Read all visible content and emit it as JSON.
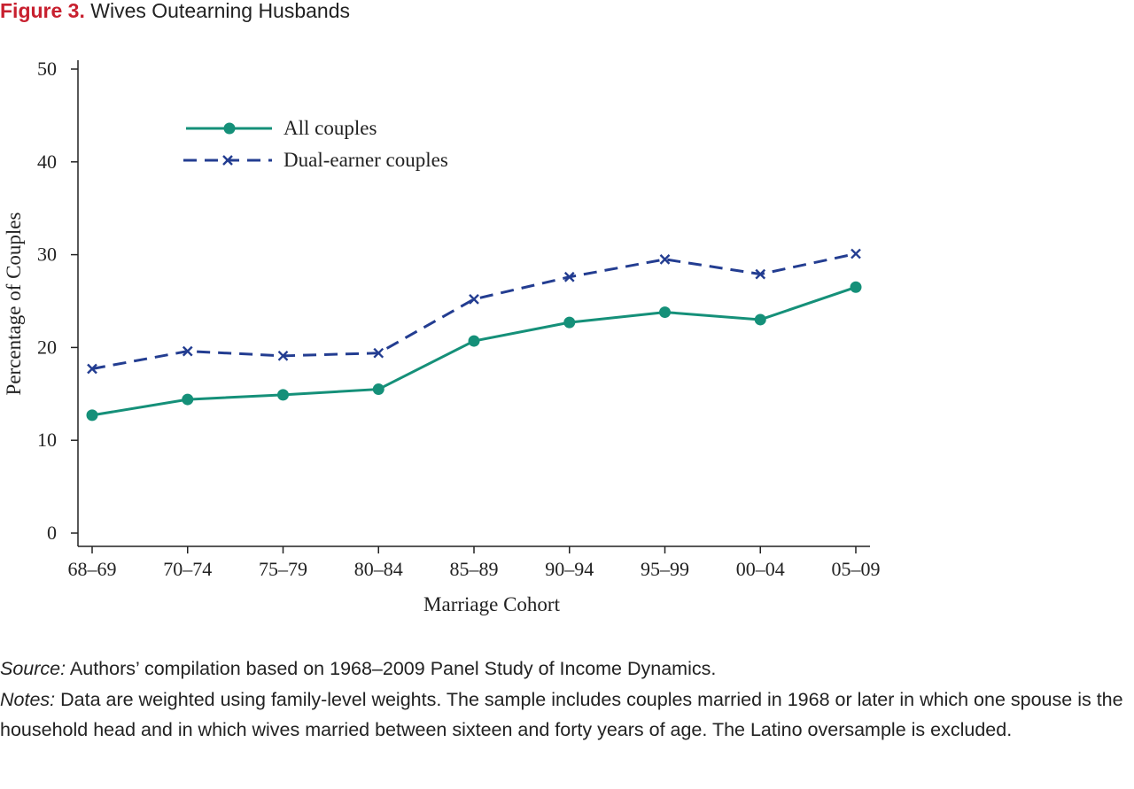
{
  "figure": {
    "number": "Figure 3.",
    "title": "Wives Outearning Husbands"
  },
  "colors": {
    "all_couples": "#159079",
    "dual_earner": "#233d91",
    "figure_number": "#c8202f"
  },
  "chart_data": {
    "type": "line",
    "categories": [
      "68–69",
      "70–74",
      "75–79",
      "80–84",
      "85–89",
      "90–94",
      "95–99",
      "00–04",
      "05–09"
    ],
    "series": [
      {
        "name": "All couples",
        "marker": "circle",
        "line": "solid",
        "values": [
          12.7,
          14.4,
          14.9,
          15.5,
          20.7,
          22.7,
          23.8,
          23.0,
          26.5
        ]
      },
      {
        "name": "Dual-earner couples",
        "marker": "x",
        "line": "dashed",
        "values": [
          17.7,
          19.6,
          19.1,
          19.4,
          25.2,
          27.6,
          29.5,
          27.9,
          30.1
        ]
      }
    ],
    "xlabel": "Marriage Cohort",
    "ylabel": "Percentage of Couples",
    "ylim": [
      0,
      50
    ],
    "yticks": [
      0,
      10,
      20,
      30,
      40,
      50
    ],
    "grid": false,
    "legend_position": "upper-left"
  },
  "notes": {
    "source_label": "Source:",
    "source_text": " Authors’ compilation based on 1968–2009 Panel Study of Income Dynamics.",
    "notes_label": "Notes:",
    "notes_text": " Data are weighted using family-level weights. The sample includes couples married in 1968 or later in which one spouse is the household head and in which wives married between sixteen and forty years of age. The Latino oversample is excluded."
  }
}
